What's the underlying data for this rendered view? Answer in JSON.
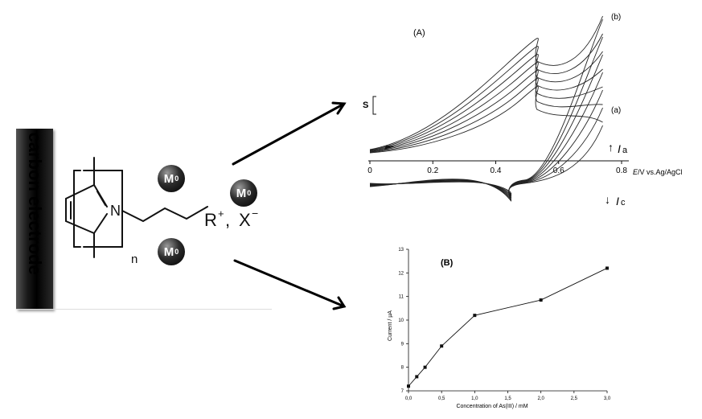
{
  "electrode": {
    "label": "carbon electrode"
  },
  "molecule": {
    "nitrogen": "N",
    "group": "R",
    "charge": "+",
    "separator": ", ",
    "anion": "X",
    "anion_charge": "−",
    "repeat": "n"
  },
  "ions": [
    {
      "symbol": "M",
      "sup": "0"
    },
    {
      "symbol": "M",
      "sup": "0"
    },
    {
      "symbol": "M",
      "sup": "0"
    }
  ],
  "chart_data": [
    {
      "type": "line",
      "panel_label": "(A)",
      "curve_labels": {
        "outer": "(b)",
        "inner": "(a)"
      },
      "scale_label": "S",
      "x_ticks": [
        "0",
        "0.2",
        "0.4",
        "0.6",
        "0.8"
      ],
      "xlabel": "E/V vs.Ag/AgCl",
      "xlabel_italic": "E",
      "xlabel_rest": "/V vs.Ag/AgCl",
      "xlim": [
        0,
        0.8
      ],
      "anodic_label": {
        "arrow": "↑",
        "symbol": "I",
        "sub": "a"
      },
      "cathodic_label": {
        "arrow": "↓",
        "symbol": "I",
        "sub": "c"
      },
      "peak_potentials": {
        "anodic": 0.5,
        "cathodic": 0.46
      },
      "curves": 7
    },
    {
      "type": "line",
      "panel_label": "(B)",
      "xlabel": "Concentration of As(III) / mM",
      "ylabel": "Current / µA",
      "x_ticks": [
        "0,0",
        "0,5",
        "1,0",
        "1,5",
        "2,0",
        "2,5",
        "3,0"
      ],
      "y_ticks": [
        "7",
        "8",
        "9",
        "10",
        "11",
        "12",
        "13"
      ],
      "xlim": [
        0,
        3.0
      ],
      "ylim": [
        7,
        13
      ],
      "x": [
        0.0,
        0.125,
        0.25,
        0.5,
        1.0,
        2.0,
        3.0
      ],
      "y": [
        7.2,
        7.6,
        8.0,
        8.9,
        10.2,
        10.85,
        12.2
      ]
    }
  ]
}
